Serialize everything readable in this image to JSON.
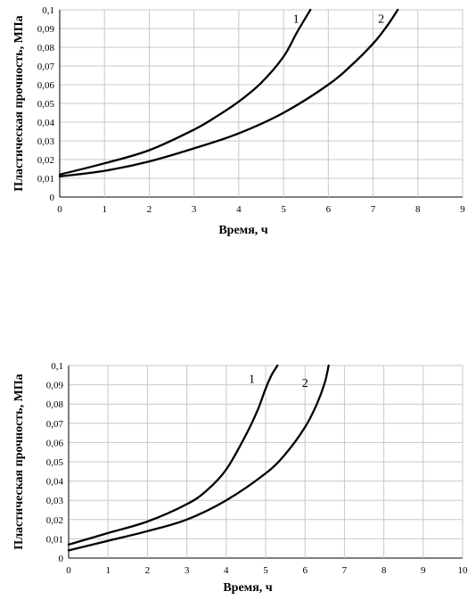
{
  "chart_data": [
    {
      "type": "line",
      "xlabel": "Время, ч",
      "ylabel": "Пластическая прочность, МПа",
      "xlim": [
        0,
        9
      ],
      "ylim": [
        0,
        0.1
      ],
      "x_ticks": [
        "0",
        "1",
        "2",
        "3",
        "4",
        "5",
        "6",
        "7",
        "8",
        "9"
      ],
      "y_ticks": [
        "0",
        "0,01",
        "0,02",
        "0,03",
        "0,04",
        "0,05",
        "0,06",
        "0,07",
        "0,08",
        "0,09",
        "0,1"
      ],
      "grid": true,
      "series": [
        {
          "name": "1",
          "x": [
            0,
            1,
            2,
            3,
            3.5,
            4,
            4.5,
            5,
            5.3,
            5.6
          ],
          "y": [
            0.012,
            0.018,
            0.025,
            0.036,
            0.043,
            0.051,
            0.061,
            0.075,
            0.088,
            0.1
          ]
        },
        {
          "name": "2",
          "x": [
            0,
            1,
            2,
            3,
            4,
            5,
            6,
            6.5,
            7,
            7.3,
            7.55
          ],
          "y": [
            0.011,
            0.014,
            0.019,
            0.026,
            0.034,
            0.045,
            0.06,
            0.07,
            0.082,
            0.091,
            0.1
          ]
        }
      ]
    },
    {
      "type": "line",
      "xlabel": "Время, ч",
      "ylabel": "Пластическая прочность, МПа",
      "xlim": [
        0,
        10
      ],
      "ylim": [
        0,
        0.1
      ],
      "x_ticks": [
        "0",
        "1",
        "2",
        "3",
        "4",
        "5",
        "6",
        "7",
        "8",
        "9",
        "10"
      ],
      "y_ticks": [
        "0",
        "0,01",
        "0,02",
        "0,03",
        "0,04",
        "0,05",
        "0,06",
        "0,07",
        "0,08",
        "0,09",
        "0,1"
      ],
      "grid": true,
      "series": [
        {
          "name": "1",
          "x": [
            0,
            1,
            2,
            3,
            3.5,
            4,
            4.5,
            4.8,
            5,
            5.15,
            5.3
          ],
          "y": [
            0.007,
            0.013,
            0.019,
            0.028,
            0.035,
            0.046,
            0.064,
            0.077,
            0.088,
            0.095,
            0.1
          ]
        },
        {
          "name": "2",
          "x": [
            0,
            1,
            2,
            3,
            4,
            5,
            5.5,
            6,
            6.3,
            6.5,
            6.6
          ],
          "y": [
            0.004,
            0.009,
            0.014,
            0.02,
            0.03,
            0.044,
            0.054,
            0.068,
            0.08,
            0.091,
            0.1
          ]
        }
      ]
    }
  ]
}
